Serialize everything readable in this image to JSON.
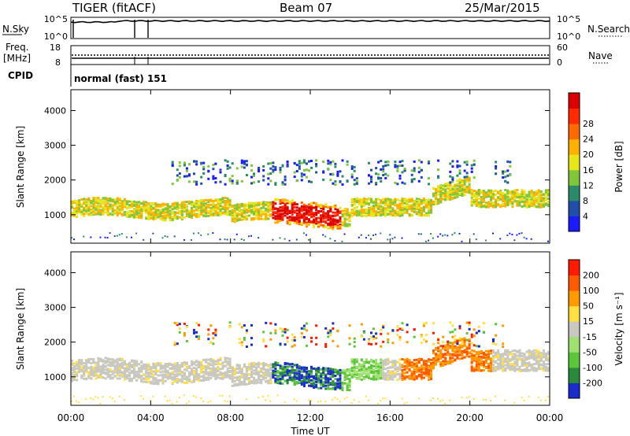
{
  "header": {
    "station": "TIGER (fitACF)",
    "beam": "Beam 07",
    "date": "25/Mar/2015"
  },
  "panels": {
    "nsky": {
      "left_label": "N.Sky",
      "right_label": "N.Search",
      "left_ticks": [
        "10^5",
        "10^0"
      ],
      "right_ticks": [
        "10^5",
        "10^0"
      ]
    },
    "freq": {
      "left_label_lines": [
        "Freq.",
        "[MHz]"
      ],
      "right_label": "Nave",
      "left_ticks": [
        "18",
        "8"
      ],
      "right_ticks": [
        "60",
        "0"
      ]
    },
    "cpid": {
      "label": "CPID",
      "value": "normal (fast) 151"
    }
  },
  "chart_data": [
    {
      "type": "heatmap",
      "ylabel": "Slant Range [km]",
      "y_ticks": [
        "1000",
        "2000",
        "3000",
        "4000"
      ],
      "ylim": [
        180,
        4600
      ],
      "xlim_hours": [
        0,
        24
      ],
      "colorbar": {
        "label": "Power [dB]",
        "ticks": [
          "4",
          "8",
          "12",
          "16",
          "20",
          "24",
          "28"
        ],
        "colors": [
          "#1a1aff",
          "#1f4fa8",
          "#2a8a6a",
          "#7fc63a",
          "#e6e61a",
          "#ffb000",
          "#ff6a00",
          "#ff2a00",
          "#dd0000"
        ]
      }
    },
    {
      "type": "heatmap",
      "ylabel": "Velocity [m s^-1]",
      "y_label_left": "Slant Range [km]",
      "y_ticks": [
        "1000",
        "2000",
        "3000",
        "4000"
      ],
      "ylim": [
        180,
        4600
      ],
      "xlim_hours": [
        0,
        24
      ],
      "colorbar": {
        "label": "Velocity [m s⁻¹]",
        "ticks": [
          "200",
          "100",
          "50",
          "15",
          "-15",
          "-50",
          "-100",
          "-200"
        ],
        "colors": [
          "#1a2ccc",
          "#2a8a3a",
          "#5cc63a",
          "#a0e070",
          "#c8c8c0",
          "#ffe040",
          "#ff9a00",
          "#ff5a00",
          "#ff1a00"
        ]
      }
    }
  ],
  "xaxis": {
    "label": "Time UT",
    "ticks": [
      "00:00",
      "04:00",
      "08:00",
      "12:00",
      "16:00",
      "20:00",
      "00:00"
    ]
  }
}
